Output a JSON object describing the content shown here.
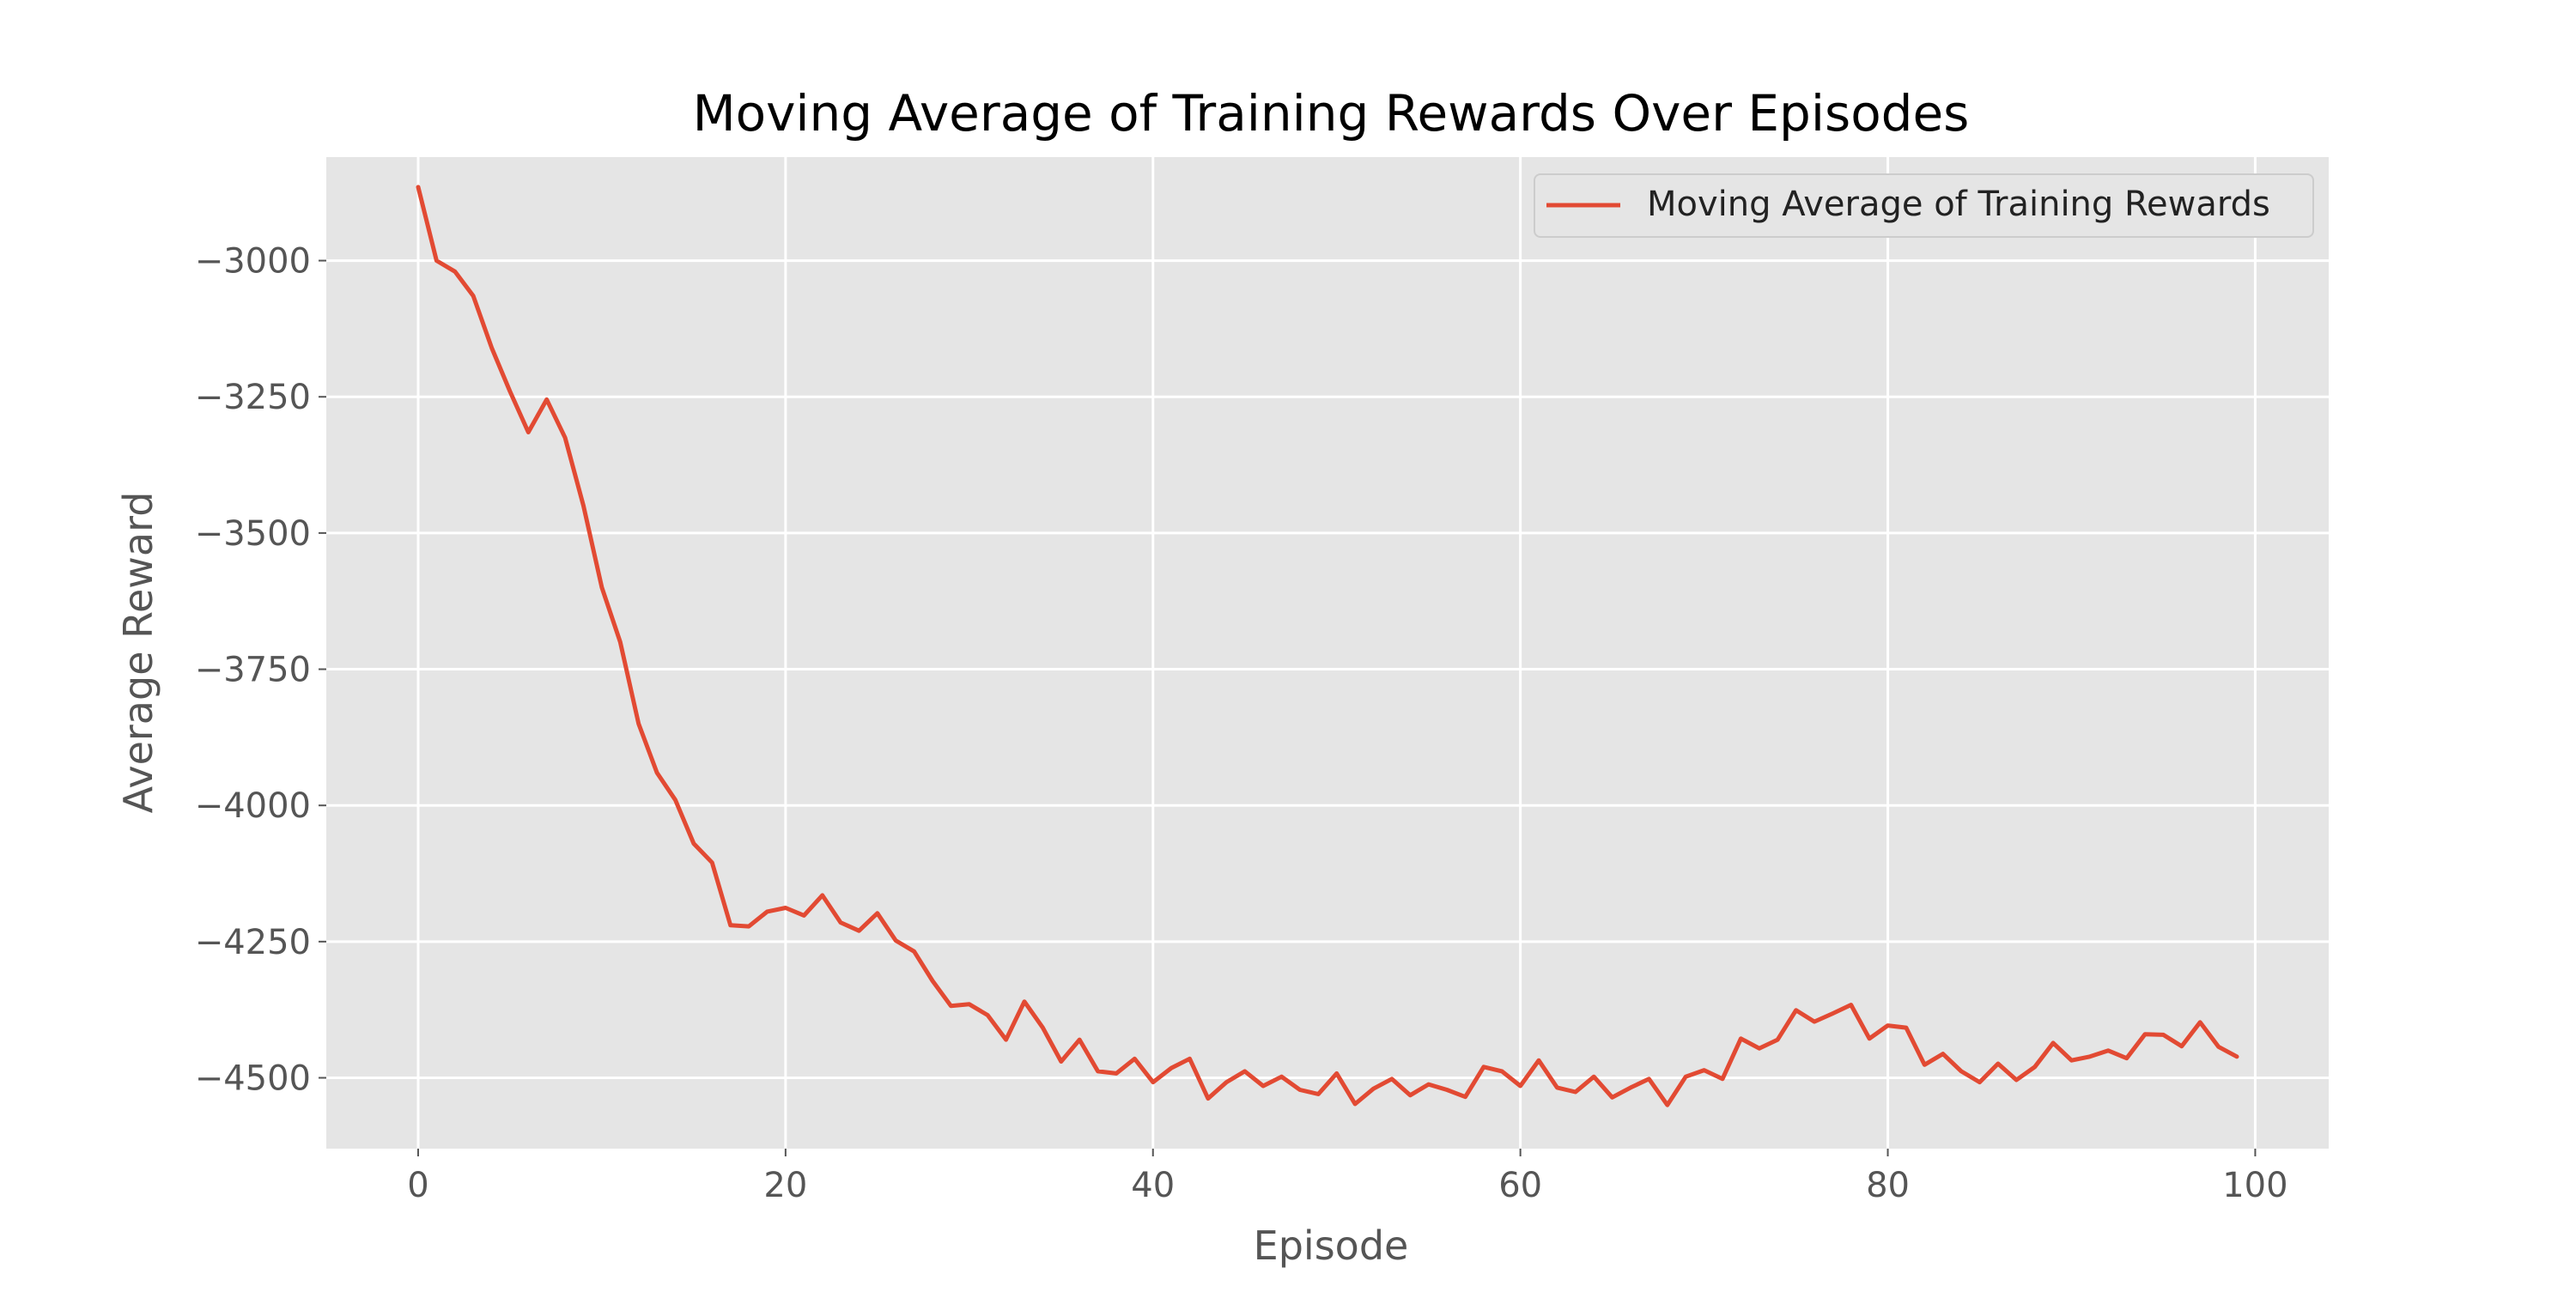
{
  "chart_data": {
    "type": "line",
    "title": "Moving Average of Training Rewards Over Episodes",
    "xlabel": "Episode",
    "ylabel": "Average Reward",
    "xlim": [
      -5,
      104
    ],
    "ylim": [
      -4630,
      -2810
    ],
    "xticks": [
      0,
      20,
      40,
      60,
      80,
      100
    ],
    "yticks": [
      -3000,
      -3250,
      -3500,
      -3750,
      -4000,
      -4250,
      -4500
    ],
    "xtick_labels": [
      "0",
      "20",
      "40",
      "60",
      "80",
      "100"
    ],
    "ytick_labels": [
      "−3000",
      "−3250",
      "−3500",
      "−3750",
      "−4000",
      "−4250",
      "−4500"
    ],
    "grid": true,
    "legend_position": "top-right",
    "style": "ggplot",
    "colors": {
      "line": "#E24A33",
      "plot_bg": "#E5E5E5",
      "grid": "#FFFFFF",
      "text": "#555555",
      "title": "#000000"
    },
    "series": [
      {
        "name": "Moving Average of Training Rewards",
        "x": [
          0,
          1,
          2,
          3,
          4,
          5,
          6,
          7,
          8,
          9,
          10,
          11,
          12,
          13,
          14,
          15,
          16,
          17,
          18,
          19,
          20,
          21,
          22,
          23,
          24,
          25,
          26,
          27,
          28,
          29,
          30,
          31,
          32,
          33,
          34,
          35,
          36,
          37,
          38,
          39,
          40,
          41,
          42,
          43,
          44,
          45,
          46,
          47,
          48,
          49,
          50,
          51,
          52,
          53,
          54,
          55,
          56,
          57,
          58,
          59,
          60,
          61,
          62,
          63,
          64,
          65,
          66,
          67,
          68,
          69,
          70,
          71,
          72,
          73,
          74,
          75,
          76,
          77,
          78,
          79,
          80,
          81,
          82,
          83,
          84,
          85,
          86,
          87,
          88,
          89,
          90,
          91,
          92,
          93,
          94,
          95,
          96,
          97,
          98,
          99
        ],
        "values": [
          -2865,
          -3000,
          -3020,
          -3065,
          -3160,
          -3240,
          -3315,
          -3255,
          -3325,
          -3450,
          -3600,
          -3700,
          -3850,
          -3940,
          -3990,
          -4070,
          -4105,
          -4220,
          -4222,
          -4195,
          -4188,
          -4202,
          -4165,
          -4215,
          -4230,
          -4198,
          -4248,
          -4268,
          -4322,
          -4368,
          -4365,
          -4385,
          -4430,
          -4360,
          -4408,
          -4470,
          -4430,
          -4488,
          -4492,
          -4465,
          -4508,
          -4482,
          -4465,
          -4538,
          -4508,
          -4488,
          -4515,
          -4498,
          -4522,
          -4530,
          -4492,
          -4548,
          -4520,
          -4502,
          -4532,
          -4512,
          -4522,
          -4535,
          -4480,
          -4488,
          -4515,
          -4468,
          -4518,
          -4526,
          -4498,
          -4536,
          -4518,
          -4502,
          -4550,
          -4498,
          -4486,
          -4502,
          -4428,
          -4446,
          -4430,
          -4376,
          -4397,
          -4382,
          -4366,
          -4428,
          -4404,
          -4408,
          -4476,
          -4456,
          -4488,
          -4508,
          -4474,
          -4504,
          -4480,
          -4436,
          -4468,
          -4461,
          -4450,
          -4464,
          -4420,
          -4421,
          -4442,
          -4398,
          -4443,
          -4461
        ]
      }
    ]
  }
}
